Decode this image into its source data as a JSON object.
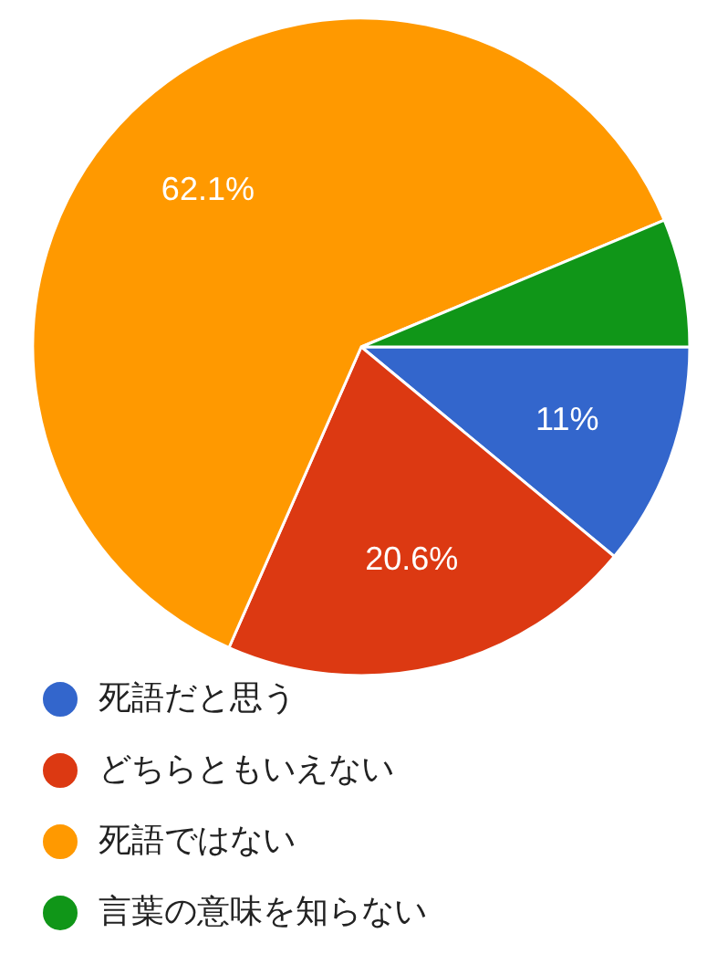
{
  "chart_data": {
    "type": "pie",
    "categories": [
      "死語だと思う",
      "どちらともいえない",
      "死語ではない",
      "言葉の意味を知らない"
    ],
    "values": [
      11,
      20.6,
      62.1,
      6.3
    ],
    "colors": [
      "#3366cc",
      "#dc3912",
      "#ff9900",
      "#109618"
    ],
    "value_labels": [
      "11%",
      "20.6%",
      "62.1%",
      null
    ],
    "legend": "bottom"
  }
}
